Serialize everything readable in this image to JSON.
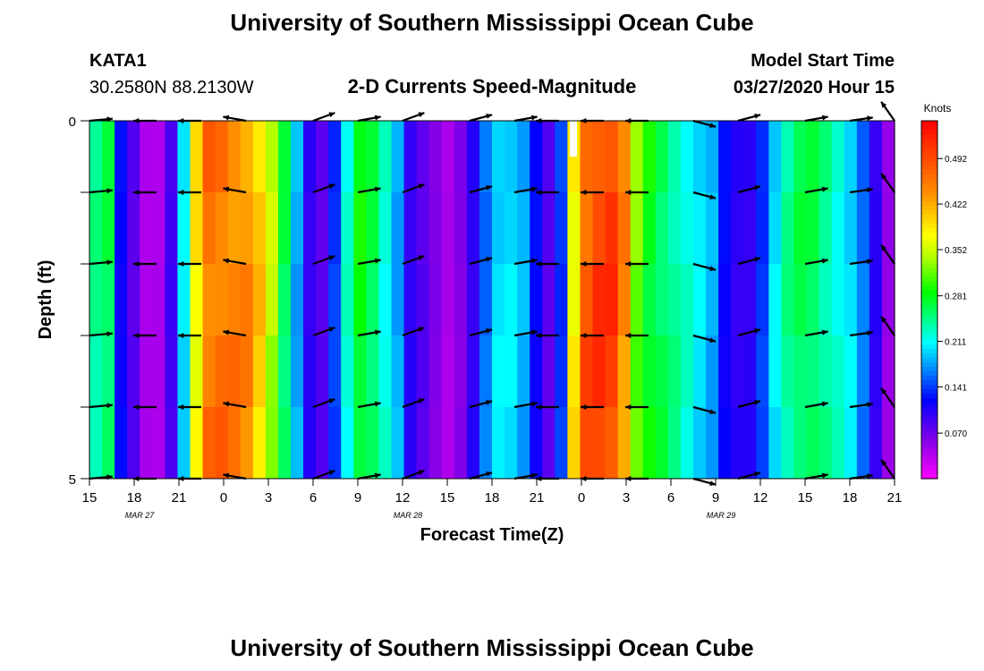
{
  "header": {
    "title": "University of Southern Mississippi Ocean Cube",
    "station": "KATA1",
    "location": "30.2580N 88.2130W",
    "subtitle": "2-D Currents Speed-Magnitude",
    "model_label": "Model Start Time",
    "model_time": "03/27/2020 Hour 15"
  },
  "footer": {
    "title": "University of Southern Mississippi Ocean Cube"
  },
  "chart_data": {
    "type": "heatmap",
    "title": "2-D Currents Speed-Magnitude",
    "xlabel": "Forecast Time(Z)",
    "ylabel": "Depth (ft)",
    "x_ticks": [
      "15",
      "18",
      "21",
      "0",
      "3",
      "6",
      "9",
      "12",
      "15",
      "18",
      "21",
      "0",
      "3",
      "6",
      "9",
      "12",
      "15",
      "18",
      "21"
    ],
    "date_labels": [
      {
        "label": "MAR  27",
        "tick_index": 1
      },
      {
        "label": "MAR  28",
        "tick_index": 7
      },
      {
        "label": "MAR  29",
        "tick_index": 14
      }
    ],
    "y_ticks": [
      "0",
      "5"
    ],
    "ylim": [
      0,
      5
    ],
    "xlim_hours": [
      0,
      54
    ],
    "colorbar": {
      "unit": "Knots",
      "range": [
        0.0,
        0.55
      ],
      "tick_values": [
        0.492,
        0.422,
        0.352,
        0.281,
        0.211,
        0.141,
        0.07
      ],
      "tick_labels": [
        "0.492",
        "0.422",
        "0.352",
        "0.281",
        "0.211",
        "0.141",
        "0.070"
      ]
    },
    "speed_columns_knots": [
      0.24,
      0.26,
      0.12,
      0.08,
      0.04,
      0.04,
      0.09,
      0.2,
      0.38,
      0.46,
      0.46,
      0.45,
      0.44,
      0.4,
      0.34,
      0.26,
      0.18,
      0.1,
      0.08,
      0.14,
      0.22,
      0.28,
      0.26,
      0.22,
      0.18,
      0.1,
      0.08,
      0.06,
      0.04,
      0.06,
      0.1,
      0.16,
      0.2,
      0.2,
      0.18,
      0.12,
      0.08,
      0.14,
      0.38,
      0.48,
      0.5,
      0.5,
      0.44,
      0.32,
      0.28,
      0.26,
      0.24,
      0.22,
      0.2,
      0.18,
      0.12,
      0.1,
      0.1,
      0.14,
      0.2,
      0.24,
      0.26,
      0.26,
      0.24,
      0.22,
      0.2,
      0.16,
      0.1,
      0.05
    ],
    "arrow_depths_ft": [
      0,
      1,
      2,
      3,
      4,
      5
    ],
    "arrow_times_hours": [
      0,
      4.5,
      7.5,
      10.5,
      15,
      18,
      21,
      25.5,
      28.5,
      31.5,
      34.5,
      37.5,
      40.5,
      43.5,
      48,
      51,
      54
    ],
    "arrow_directions_deg": [
      5,
      180,
      180,
      170,
      20,
      10,
      20,
      15,
      10,
      180,
      180,
      180,
      -15,
      15,
      10,
      8,
      125
    ]
  }
}
